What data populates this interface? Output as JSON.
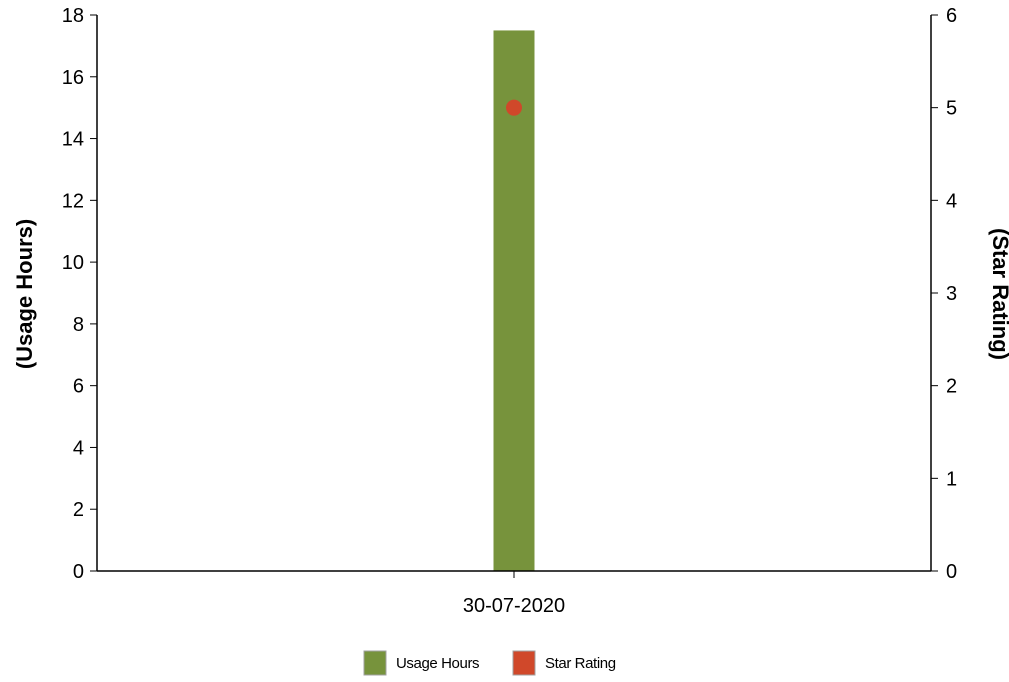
{
  "chart_data": {
    "type": "bar",
    "categories": [
      "30-07-2020"
    ],
    "series": [
      {
        "name": "Usage Hours",
        "type": "bar",
        "axis": "left",
        "values": [
          17.5
        ],
        "color": "#77933c"
      },
      {
        "name": "Star Rating",
        "type": "scatter",
        "axis": "right",
        "values": [
          5
        ],
        "color": "#d0482a"
      }
    ],
    "ylabel": "(Usage Hours)",
    "y2label": "(Star Rating)",
    "ylim": [
      0,
      18
    ],
    "y2lim": [
      0,
      6
    ],
    "yticks": [
      "0",
      "2",
      "4",
      "6",
      "8",
      "10",
      "12",
      "14",
      "16",
      "18"
    ],
    "y2ticks": [
      "0",
      "1",
      "2",
      "3",
      "4",
      "5",
      "6"
    ],
    "grid": false,
    "legend_position": "bottom-center"
  }
}
